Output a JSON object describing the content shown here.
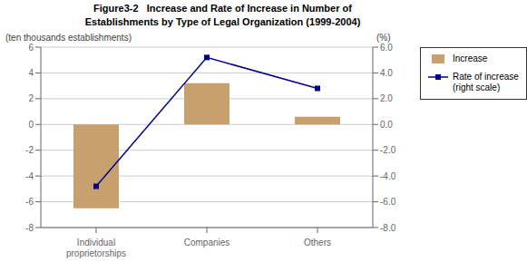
{
  "chart_data": {
    "type": "bar",
    "title": "Figure3-2   Increase and Rate of Increase in Number of\nEstablishments by Type of Legal Organization (1999-2004)",
    "categories": [
      "Individual\nproprietorships",
      "Companies",
      "Others"
    ],
    "series": [
      {
        "name": "Increase",
        "type": "bar",
        "color": "#C8A06E",
        "values": [
          -6.5,
          3.2,
          0.6
        ]
      },
      {
        "name": "Rate of increase\n(right scale)",
        "type": "line",
        "color": "#00008B",
        "marker": "square",
        "axis": "y2",
        "values": [
          -4.8,
          5.2,
          2.8
        ]
      }
    ],
    "ylabel": "(ten thousands establishments)",
    "y2label": "(%)",
    "ylim": [
      -8,
      6
    ],
    "yticks": [
      -8,
      -6,
      -4,
      -2,
      0,
      2,
      4,
      6
    ],
    "y2lim": [
      -8.0,
      6.0
    ],
    "y2ticks": [
      {
        "value": -8.0,
        "label": "-8.0"
      },
      {
        "value": -6.0,
        "label": "-6.0"
      },
      {
        "value": -4.0,
        "label": "-4.0"
      },
      {
        "value": -2.0,
        "label": "-2.0"
      },
      {
        "value": 0.0,
        "label": "0.0"
      },
      {
        "value": 2.0,
        "label": "2.0"
      },
      {
        "value": 4.0,
        "label": "4.0"
      },
      {
        "value": 6.0,
        "label": "6.0"
      }
    ],
    "grid": true,
    "legend": "right"
  }
}
